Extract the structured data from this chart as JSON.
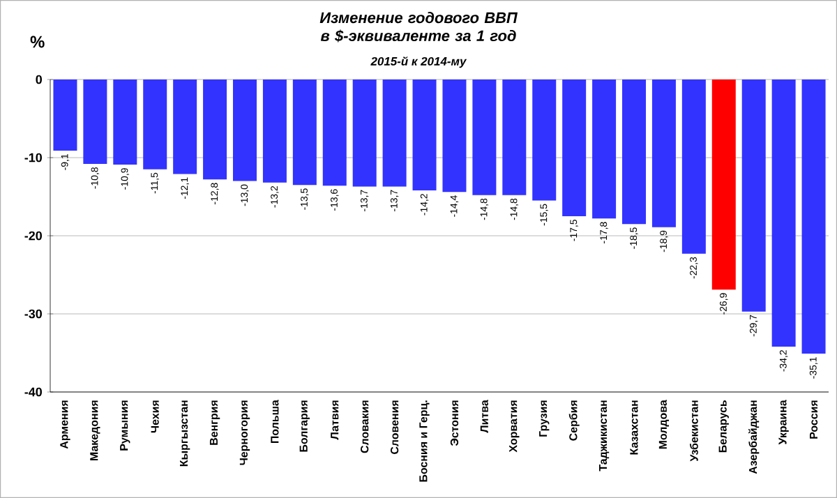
{
  "chart_data": {
    "type": "bar",
    "title": "Изменение годового ВВП в $-эквиваленте за 1 год",
    "subtitle": "2015-й к 2014-му",
    "ylabel": "%",
    "categories": [
      "Армения",
      "Македония",
      "Румыния",
      "Чехия",
      "Кыргызстан",
      "Венгрия",
      "Черногория",
      "Польша",
      "Болгария",
      "Латвия",
      "Словакия",
      "Словения",
      "Босния  и Герц.",
      "Эстония",
      "Литва",
      "Хорватия",
      "Грузия",
      "Сербия",
      "Таджикистан",
      "Казахстан",
      "Молдова",
      "Узбекистан",
      "Беларусь",
      "Азербайджан",
      "Украина",
      "Россия"
    ],
    "values": [
      -9.1,
      -10.8,
      -10.9,
      -11.5,
      -12.1,
      -12.8,
      -13.0,
      -13.2,
      -13.5,
      -13.6,
      -13.7,
      -13.7,
      -14.2,
      -14.4,
      -14.8,
      -14.8,
      -15.5,
      -17.5,
      -17.8,
      -18.5,
      -18.9,
      -22.3,
      -26.9,
      -29.7,
      -34.2,
      -35.1
    ],
    "value_labels": [
      "-9,1",
      "-10,8",
      "-10,9",
      "-11,5",
      "-12,1",
      "-12,8",
      "-13,0",
      "-13,2",
      "-13,5",
      "-13,6",
      "-13,7",
      "-13,7",
      "-14,2",
      "-14,4",
      "-14,8",
      "-14,8",
      "-15,5",
      "-17,5",
      "-17,8",
      "-18,5",
      "-18,9",
      "-22,3",
      "-26,9",
      "-29,7",
      "-34,2",
      "-35,1"
    ],
    "colors": [
      "#3333ff",
      "#3333ff",
      "#3333ff",
      "#3333ff",
      "#3333ff",
      "#3333ff",
      "#3333ff",
      "#3333ff",
      "#3333ff",
      "#3333ff",
      "#3333ff",
      "#3333ff",
      "#3333ff",
      "#3333ff",
      "#3333ff",
      "#3333ff",
      "#3333ff",
      "#3333ff",
      "#3333ff",
      "#3333ff",
      "#3333ff",
      "#3333ff",
      "#ff0000",
      "#3333ff",
      "#3333ff",
      "#3333ff"
    ],
    "ylim": [
      -40,
      0
    ],
    "yticks": [
      0,
      -10,
      -20,
      -30,
      -40
    ],
    "grid": "y"
  }
}
